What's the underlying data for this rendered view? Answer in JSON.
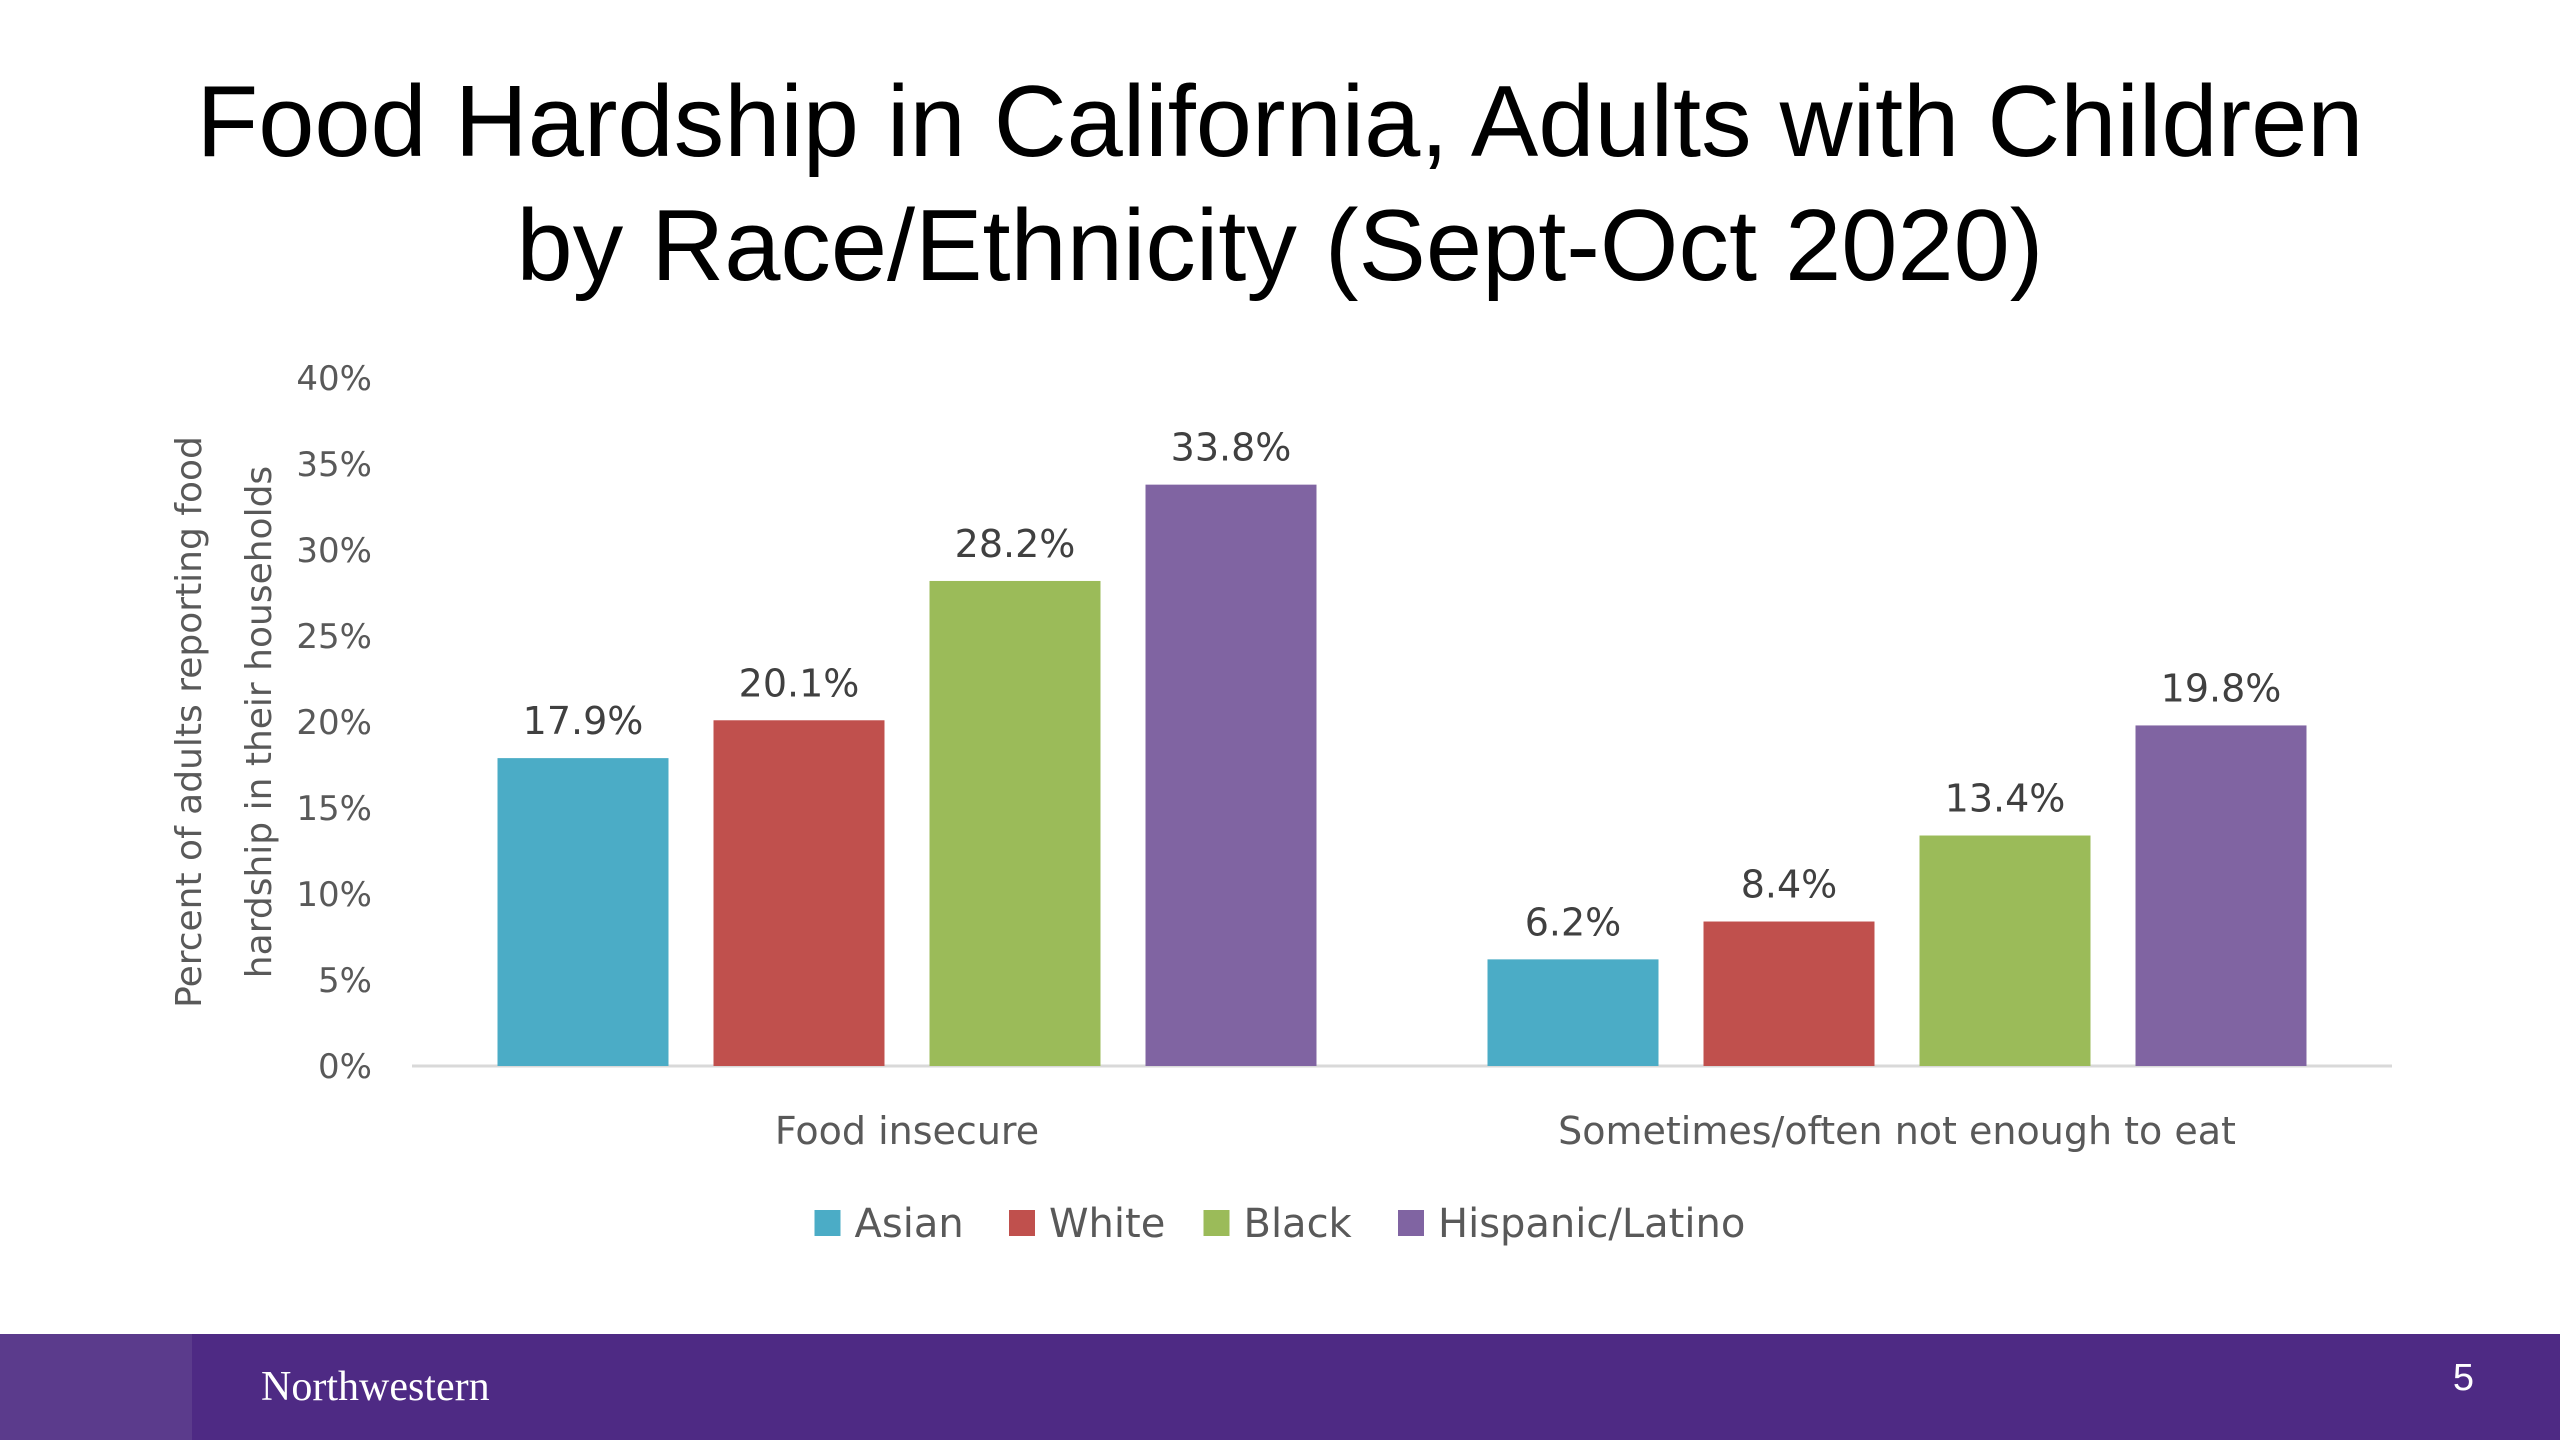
{
  "slide": {
    "title_line1": "Food Hardship in California, Adults with Children",
    "title_line2": "by Race/Ethnicity (Sept-Oct 2020)",
    "page_number": "5"
  },
  "footer": {
    "logo_text": "Northwestern",
    "background_color": "#4e2a84"
  },
  "chart_data": {
    "type": "bar",
    "categories": [
      "Food insecure",
      "Sometimes/often not enough to eat"
    ],
    "series": [
      {
        "name": "Asian",
        "values": [
          17.9,
          6.2
        ],
        "labels": [
          "17.9%",
          "6.2%"
        ],
        "color": "#4bacc6"
      },
      {
        "name": "White",
        "values": [
          20.1,
          8.4
        ],
        "labels": [
          "20.1%",
          "8.4%"
        ],
        "color": "#c0504d"
      },
      {
        "name": "Black",
        "values": [
          28.2,
          13.4
        ],
        "labels": [
          "28.2%",
          "13.4%"
        ],
        "color": "#9bbb59"
      },
      {
        "name": "Hispanic/Latino",
        "values": [
          33.8,
          19.8
        ],
        "labels": [
          "33.8%",
          "19.8%"
        ],
        "color": "#8064a2"
      }
    ],
    "ylabel_line1": "Percent of adults reporting food",
    "ylabel_line2": "hardship in their households",
    "xlabel": "",
    "ylim": [
      0,
      40
    ],
    "yticks": [
      0,
      5,
      10,
      15,
      20,
      25,
      30,
      35,
      40
    ],
    "ytick_labels": [
      "0%",
      "5%",
      "10%",
      "15%",
      "20%",
      "25%",
      "30%",
      "35%",
      "40%"
    ],
    "grid": false,
    "legend_position": "bottom"
  }
}
